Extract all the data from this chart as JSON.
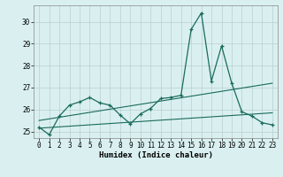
{
  "xlabel": "Humidex (Indice chaleur)",
  "x": [
    0,
    1,
    2,
    3,
    4,
    5,
    6,
    7,
    8,
    9,
    10,
    11,
    12,
    13,
    14,
    15,
    16,
    17,
    18,
    19,
    20,
    21,
    22,
    23
  ],
  "line_main": [
    25.2,
    24.85,
    25.7,
    26.2,
    26.35,
    26.55,
    26.3,
    26.2,
    25.75,
    25.35,
    25.8,
    26.05,
    26.5,
    26.55,
    26.65,
    29.65,
    30.4,
    27.3,
    28.9,
    27.2,
    25.9,
    25.7,
    25.4,
    25.3
  ],
  "trend1_x": [
    0,
    23
  ],
  "trend1_y": [
    25.5,
    27.2
  ],
  "trend2_x": [
    0,
    23
  ],
  "trend2_y": [
    25.15,
    25.85
  ],
  "ylim": [
    24.7,
    30.75
  ],
  "xlim": [
    -0.5,
    23.5
  ],
  "yticks": [
    25,
    26,
    27,
    28,
    29,
    30
  ],
  "xticks": [
    0,
    1,
    2,
    3,
    4,
    5,
    6,
    7,
    8,
    9,
    10,
    11,
    12,
    13,
    14,
    15,
    16,
    17,
    18,
    19,
    20,
    21,
    22,
    23
  ],
  "line_color": "#1a6b5a",
  "bg_color": "#daf0f0",
  "grid_color": "#b8d0d0",
  "tick_fontsize": 5.5,
  "label_fontsize": 6.5
}
